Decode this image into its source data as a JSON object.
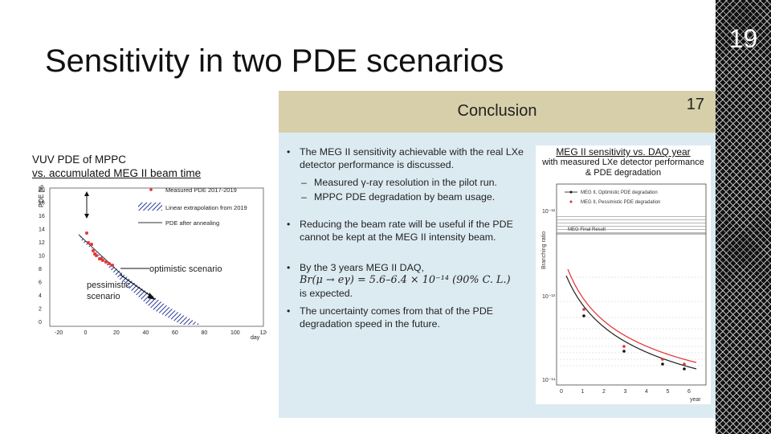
{
  "slide": {
    "title": "Sensitivity in two PDE scenarios",
    "page_number": "19"
  },
  "left_figure": {
    "title_line1": "VUV PDE of MPPC",
    "title_line2": "vs. accumulated MEG II beam time",
    "ylabel": "PDE [%]",
    "xlabel": "day",
    "y_ticks": [
      "20",
      "18",
      "16",
      "14",
      "12",
      "10",
      "8",
      "6",
      "4",
      "2",
      "0"
    ],
    "x_ticks": [
      "-20",
      "0",
      "20",
      "40",
      "60",
      "80",
      "100",
      "120"
    ],
    "legend": [
      "Measured PDE 2017-2019",
      "Linear extrapolation from 2019",
      "PDE after annealing"
    ],
    "annotations": {
      "optimistic": "optimistic scenario",
      "pessimistic_1": "pessimistic",
      "pessimistic_2": "scenario"
    }
  },
  "inner_slide": {
    "title": "Conclusion",
    "number": "17",
    "bullet1": "The MEG II sensitivity achievable with the real LXe detector performance is discussed.",
    "sub1": "Measured γ-ray resolution in the pilot run.",
    "sub2": "MPPC PDE degradation by beam usage.",
    "bullet2": "Reducing the beam rate will be useful if the PDE cannot be kept at the MEG II intensity beam.",
    "bullet3_line1": "By the 3 years MEG II DAQ,",
    "bullet3_formula": "Br(μ → eγ) = 5.6–6.4 × 10⁻¹⁴ (90% C. L.)",
    "bullet3_line3": "is expected.",
    "bullet4": "The uncertainty comes from that of the PDE degradation speed in the future.",
    "right_figure": {
      "title_line1": "MEG II sensitivity vs. DAQ year",
      "title_line2": "with measured LXe detector performance",
      "title_line3": "& PDE degradation",
      "ylabel": "Branching ratio",
      "xlabel": "year",
      "legend": [
        "MEG II, Optimistic PDE degradation",
        "MEG II, Pessimistic PDE degradation"
      ],
      "band_label": "MEG Final Result",
      "y_ticks": [
        "10⁻¹²",
        "10⁻¹³",
        "10⁻¹⁴"
      ],
      "x_ticks": [
        "0",
        "1",
        "2",
        "3",
        "4",
        "5",
        "6"
      ]
    }
  },
  "colors": {
    "measured": "#e53030",
    "band": "#2a3a9a",
    "pessimistic": "#e53030",
    "optimistic": "#111111"
  }
}
